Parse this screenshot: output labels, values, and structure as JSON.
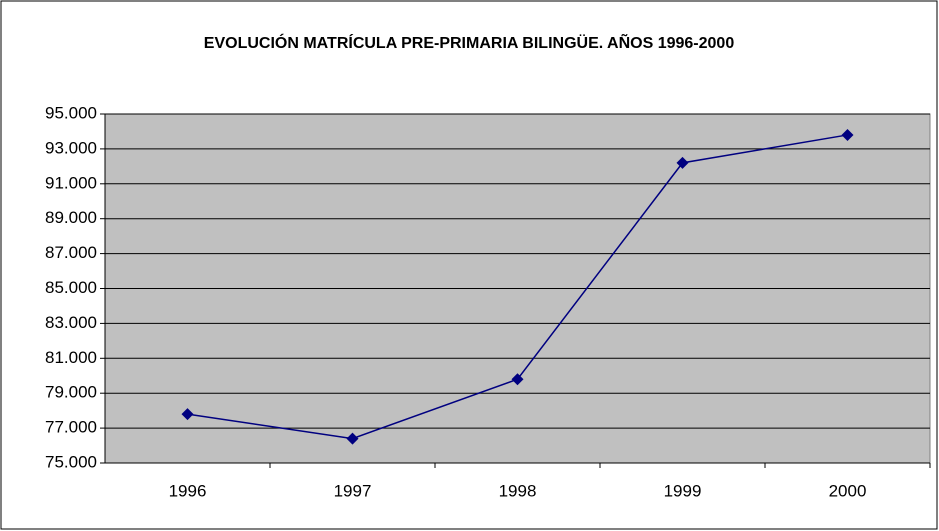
{
  "chart_data": {
    "type": "line",
    "title": "EVOLUCIÓN MATRÍCULA PRE-PRIMARIA BILINGÜE. AÑOS 1996-2000",
    "categories": [
      "1996",
      "1997",
      "1998",
      "1999",
      "2000"
    ],
    "series": [
      {
        "color": "#000080",
        "values": [
          77800,
          76400,
          79800,
          92200,
          93800
        ]
      }
    ],
    "ylim": [
      75000,
      95000
    ],
    "yticks": [
      {
        "value": 75000,
        "label": "75.000"
      },
      {
        "value": 77000,
        "label": "77.000"
      },
      {
        "value": 79000,
        "label": "79.000"
      },
      {
        "value": 81000,
        "label": "81.000"
      },
      {
        "value": 83000,
        "label": "83.000"
      },
      {
        "value": 85000,
        "label": "85.000"
      },
      {
        "value": 87000,
        "label": "87.000"
      },
      {
        "value": 89000,
        "label": "89.000"
      },
      {
        "value": 91000,
        "label": "91.000"
      },
      {
        "value": 93000,
        "label": "93.000"
      },
      {
        "value": 95000,
        "label": "95.000"
      }
    ],
    "grid": true,
    "plot_background": "#c0c0c0"
  }
}
